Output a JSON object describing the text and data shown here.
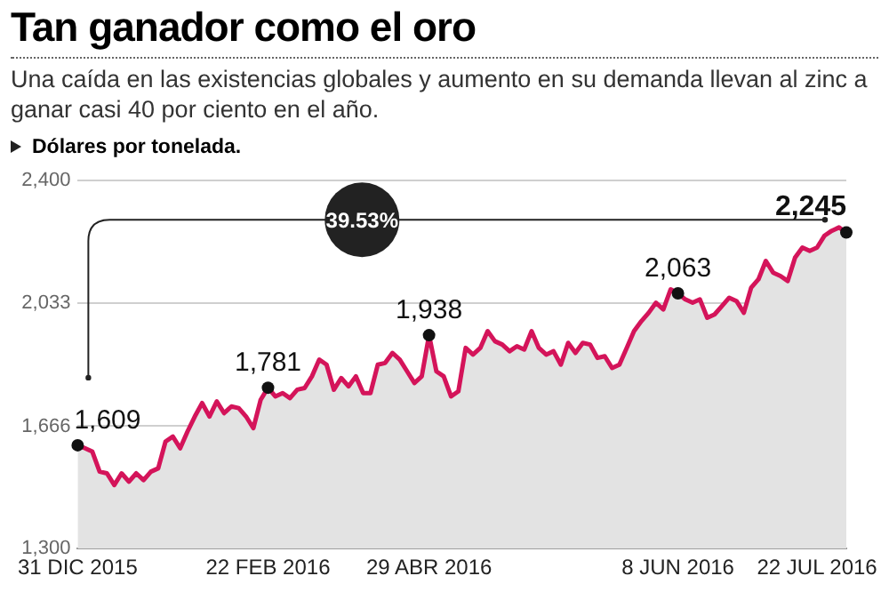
{
  "chart_data": {
    "type": "area",
    "title": "Tan ganador como el oro",
    "subtitle": "Una caída en las existencias globales y aumento en su demanda llevan al zinc a ganar casi 40 por ciento en el año.",
    "ylabel": "Dólares por tonelada.",
    "annotations": [
      "39.53%"
    ],
    "categories": [
      "31 DIC 2015",
      null,
      null,
      null,
      null,
      null,
      null,
      null,
      null,
      null,
      null,
      null,
      null,
      null,
      null,
      null,
      null,
      null,
      null,
      null,
      null,
      null,
      null,
      null,
      null,
      null,
      "22 FEB 2016",
      null,
      null,
      null,
      null,
      null,
      null,
      null,
      null,
      null,
      null,
      null,
      null,
      null,
      null,
      null,
      null,
      null,
      null,
      null,
      null,
      null,
      "29 ABR 2016",
      null,
      null,
      null,
      null,
      null,
      null,
      null,
      null,
      null,
      null,
      null,
      null,
      null,
      null,
      null,
      null,
      null,
      null,
      null,
      null,
      null,
      null,
      null,
      null,
      null,
      null,
      null,
      null,
      null,
      null,
      null,
      null,
      null,
      "8 JUN 2016",
      null,
      null,
      null,
      null,
      null,
      null,
      null,
      null,
      null,
      null,
      null,
      null,
      null,
      null,
      null,
      null,
      null,
      null,
      "22 JUL 2016",
      null,
      null,
      null,
      null
    ],
    "series": [
      {
        "color": "#d4145a",
        "values": [
          1609,
          1600,
          1590,
          1530,
          1525,
          1490,
          1525,
          1500,
          1525,
          1505,
          1530,
          1540,
          1620,
          1635,
          1600,
          1650,
          1695,
          1735,
          1695,
          1740,
          1705,
          1725,
          1720,
          1695,
          1660,
          1745,
          1781,
          1755,
          1765,
          1750,
          1775,
          1780,
          1815,
          1865,
          1850,
          1775,
          1810,
          1785,
          1815,
          1765,
          1765,
          1850,
          1855,
          1885,
          1865,
          1830,
          1795,
          1815,
          1938,
          1830,
          1815,
          1755,
          1770,
          1900,
          1880,
          1900,
          1950,
          1920,
          1910,
          1890,
          1905,
          1895,
          1950,
          1900,
          1880,
          1890,
          1850,
          1915,
          1885,
          1915,
          1910,
          1870,
          1875,
          1840,
          1850,
          1900,
          1950,
          1980,
          2005,
          2035,
          2015,
          2075,
          2063,
          2045,
          2035,
          2045,
          1990,
          2000,
          2025,
          2050,
          2040,
          2005,
          2080,
          2105,
          2160,
          2125,
          2115,
          2100,
          2170,
          2200,
          2190,
          2200,
          2235,
          2250,
          2260,
          2245
        ],
        "value_labels": [
          "1,609",
          null,
          null,
          null,
          null,
          null,
          null,
          null,
          null,
          null,
          null,
          null,
          null,
          null,
          null,
          null,
          null,
          null,
          null,
          null,
          null,
          null,
          null,
          null,
          null,
          null,
          "1,781",
          null,
          null,
          null,
          null,
          null,
          null,
          null,
          null,
          null,
          null,
          null,
          null,
          null,
          null,
          null,
          null,
          null,
          null,
          null,
          null,
          null,
          "1,938",
          null,
          null,
          null,
          null,
          null,
          null,
          null,
          null,
          null,
          null,
          null,
          null,
          null,
          null,
          null,
          null,
          null,
          null,
          null,
          null,
          null,
          null,
          null,
          null,
          null,
          null,
          null,
          null,
          null,
          null,
          null,
          null,
          null,
          "2,063",
          null,
          null,
          null,
          null,
          null,
          null,
          null,
          null,
          null,
          null,
          null,
          null,
          null,
          null,
          null,
          null,
          null,
          null,
          null,
          null,
          null,
          null,
          "2,245"
        ]
      }
    ],
    "ylim": [
      1300,
      2400
    ],
    "yticks": [
      {
        "value": 1300,
        "label": "1,300"
      },
      {
        "value": 1666,
        "label": "1,666"
      },
      {
        "value": 2033,
        "label": "2,033"
      },
      {
        "value": 2400,
        "label": "2,400"
      }
    ],
    "grid": "y",
    "legend": false
  }
}
